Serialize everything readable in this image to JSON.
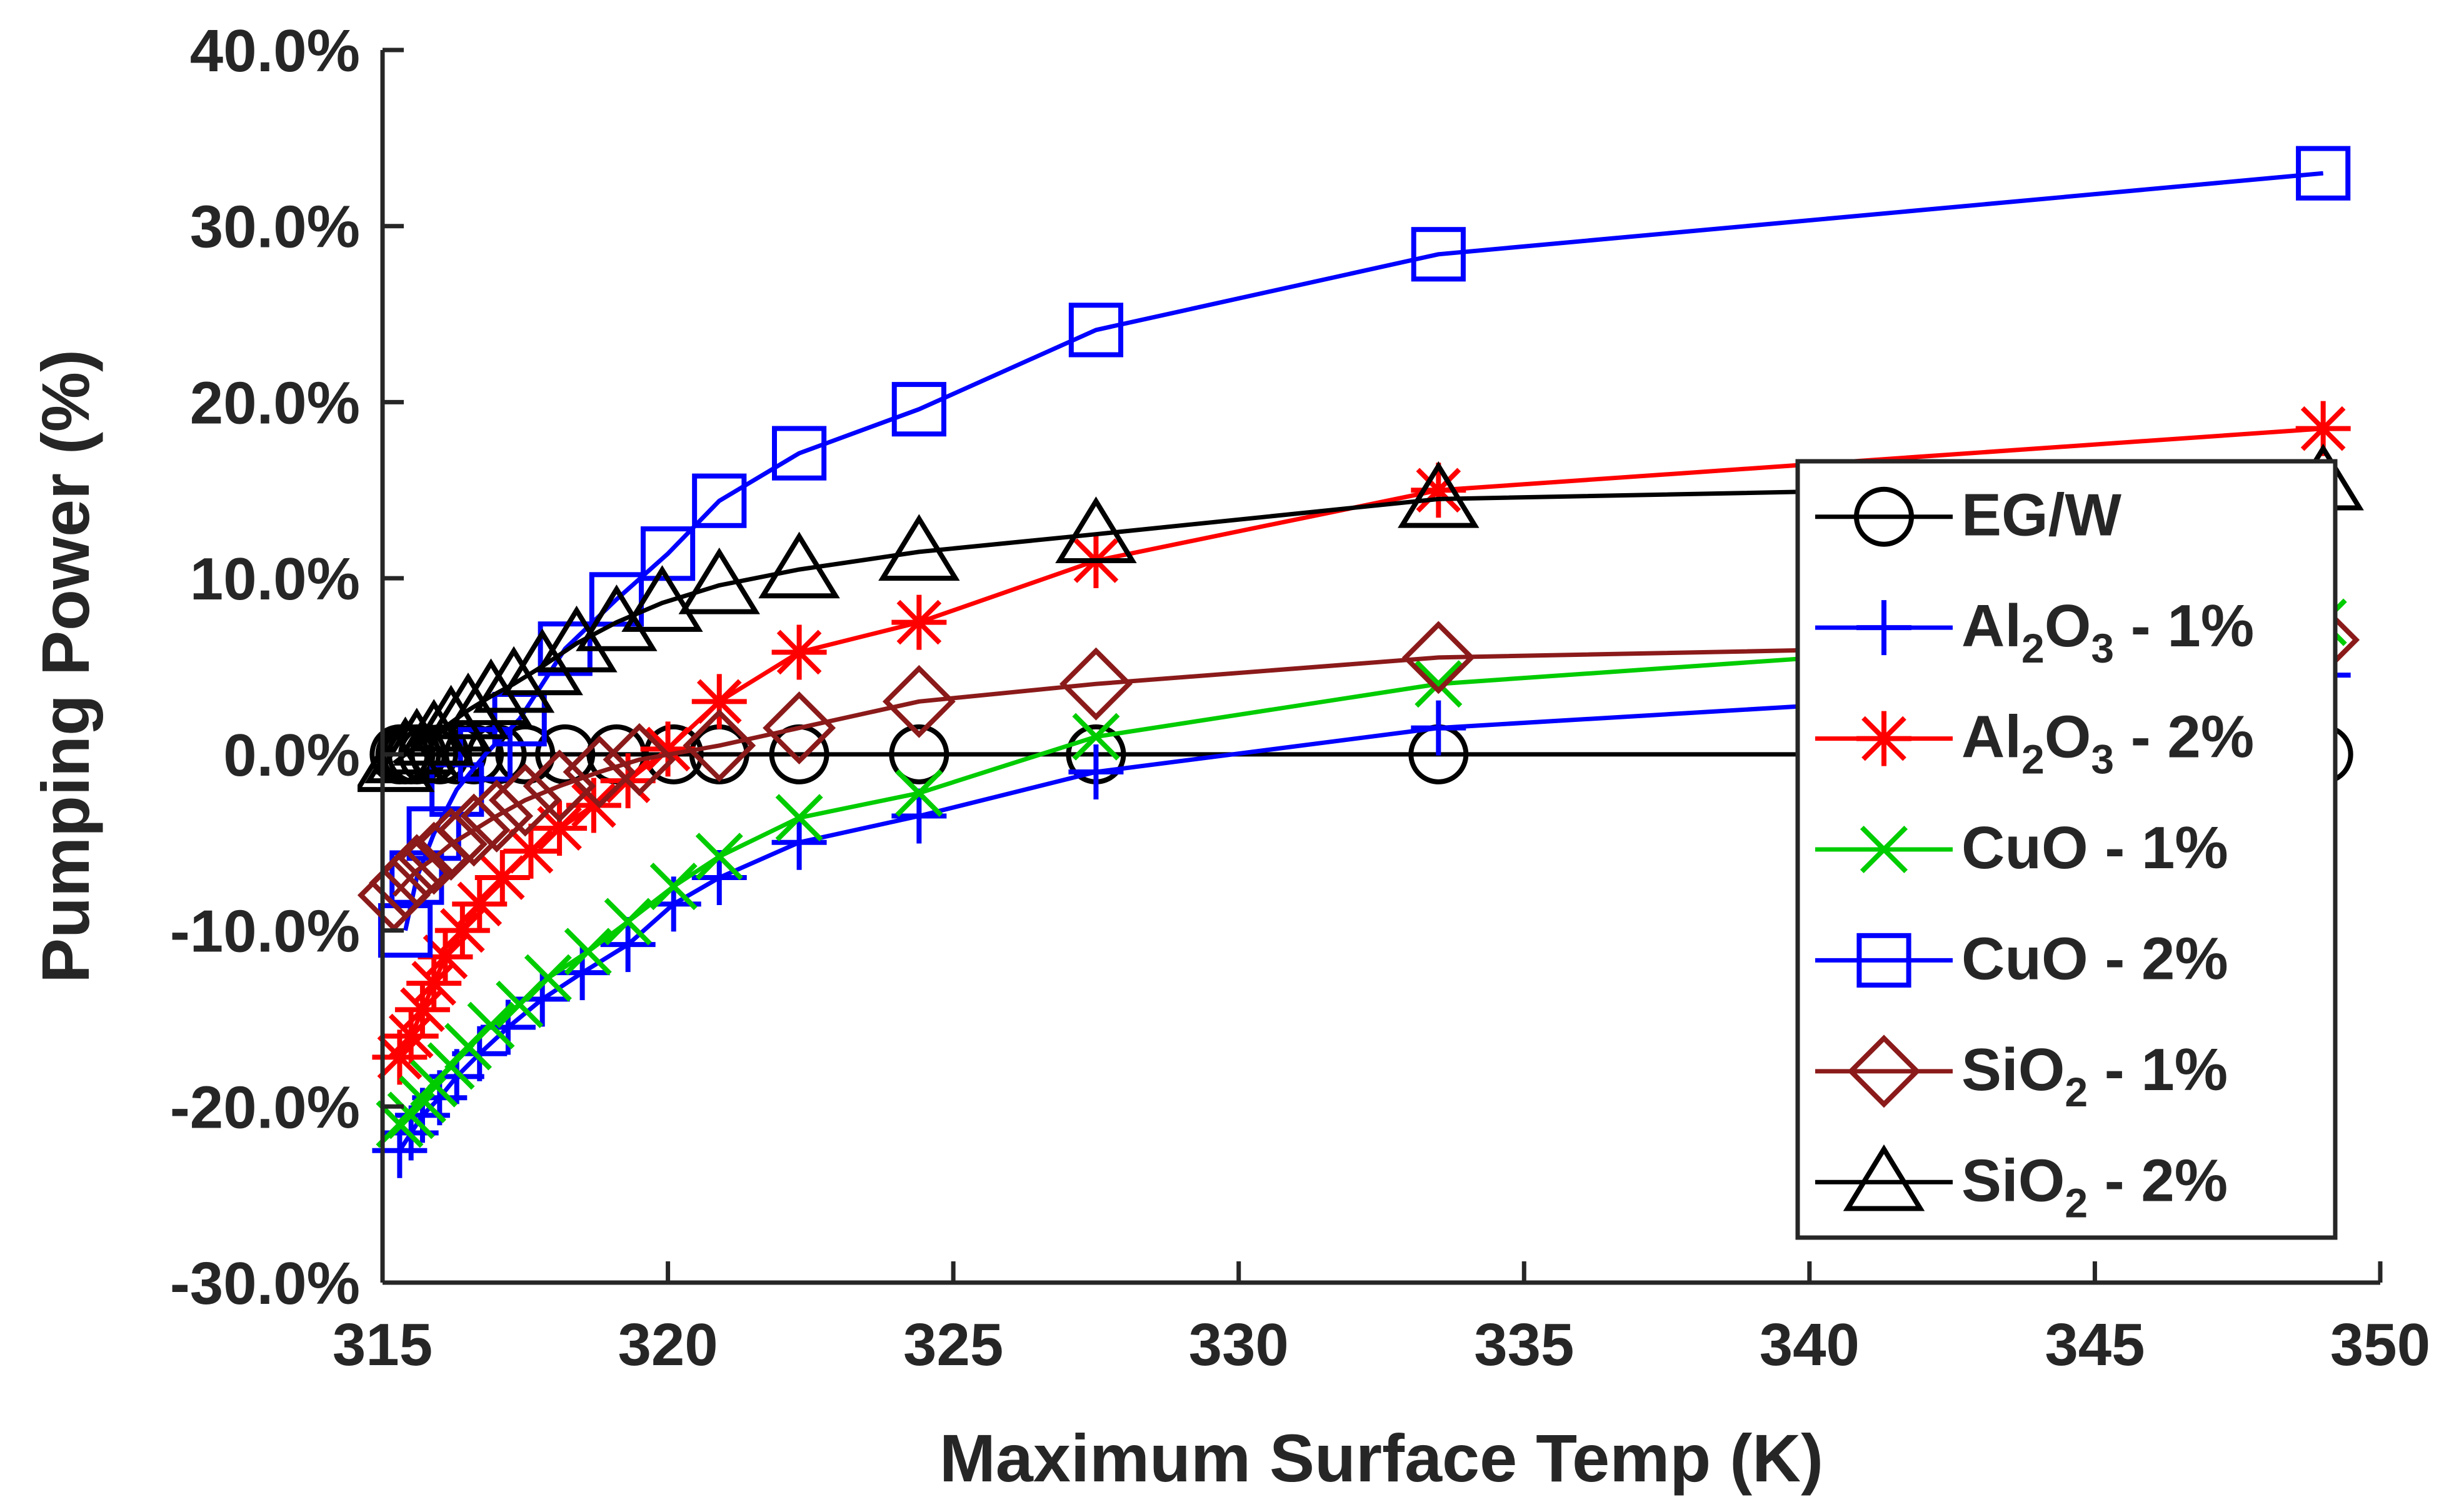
{
  "chart_data": {
    "type": "line",
    "title": "",
    "xlabel": "Maximum Surface Temp (K)",
    "ylabel": "Pumping Power (%)",
    "xlim": [
      315,
      350
    ],
    "ylim": [
      -30,
      40
    ],
    "x_ticks": [
      315,
      320,
      325,
      330,
      335,
      340,
      345,
      350
    ],
    "x_tick_labels": [
      "315",
      "320",
      "325",
      "330",
      "335",
      "340",
      "345",
      "350"
    ],
    "y_ticks": [
      -30,
      -20,
      -10,
      0,
      10,
      20,
      30,
      40
    ],
    "y_tick_labels": [
      "-30.0%",
      "-20.0%",
      "-10.0%",
      "0.0%",
      "10.0%",
      "20.0%",
      "30.0%",
      "40.0%"
    ],
    "grid": false,
    "legend_position": "right",
    "legend": [
      {
        "base": "EG/W",
        "sub": "",
        "rest": ""
      },
      {
        "base": "Al",
        "sub": "2",
        "base2": "O",
        "sub2": "3",
        "rest": " - 1%"
      },
      {
        "base": "Al",
        "sub": "2",
        "base2": "O",
        "sub2": "3",
        "rest": " - 2%"
      },
      {
        "base": "CuO - 1%",
        "sub": "",
        "rest": ""
      },
      {
        "base": "CuO - 2%",
        "sub": "",
        "rest": ""
      },
      {
        "base": "SiO",
        "sub": "2",
        "rest": " - 1%"
      },
      {
        "base": "SiO",
        "sub": "2",
        "rest": " - 2%"
      }
    ],
    "series": [
      {
        "name": "EG/W",
        "color": "#000000",
        "marker": "circle",
        "x": [
          315.3,
          315.4,
          315.5,
          315.6,
          315.8,
          316.0,
          316.3,
          316.6,
          317.0,
          317.5,
          318.2,
          319.1,
          320.1,
          320.9,
          322.3,
          324.4,
          327.5,
          333.5,
          349.0
        ],
        "y": [
          0,
          0,
          0,
          0,
          0,
          0,
          0,
          0,
          0,
          0,
          0,
          0,
          0,
          0,
          0,
          0,
          0,
          0,
          0
        ]
      },
      {
        "name": "Al2O3 - 1%",
        "color": "#0000FF",
        "marker": "plus",
        "x": [
          315.3,
          315.5,
          315.7,
          316.0,
          316.3,
          316.7,
          317.2,
          317.8,
          318.5,
          319.3,
          320.1,
          320.9,
          322.3,
          324.4,
          327.5,
          333.5,
          349.0
        ],
        "y": [
          -22.5,
          -21.5,
          -20.5,
          -19.5,
          -18.3,
          -17.0,
          -15.5,
          -13.9,
          -12.4,
          -10.8,
          -8.5,
          -7.0,
          -5.0,
          -3.5,
          -1.0,
          1.5,
          4.5
        ]
      },
      {
        "name": "Al2O3 - 2%",
        "color": "#FF0000",
        "marker": "asterisk",
        "x": [
          315.3,
          315.5,
          315.7,
          315.9,
          316.1,
          316.4,
          316.7,
          317.1,
          317.6,
          318.1,
          318.7,
          319.3,
          320.0,
          320.9,
          322.3,
          324.4,
          327.5,
          333.5,
          349.0
        ],
        "y": [
          -17.2,
          -16.0,
          -14.5,
          -13.0,
          -11.5,
          -10.0,
          -8.5,
          -7.0,
          -5.5,
          -4.2,
          -2.9,
          -1.5,
          0.3,
          3.0,
          5.8,
          7.5,
          11.0,
          15.0,
          18.5
        ]
      },
      {
        "name": "CuO - 1%",
        "color": "#00CC00",
        "marker": "x",
        "x": [
          315.3,
          315.5,
          315.7,
          315.9,
          316.2,
          316.5,
          316.9,
          317.4,
          317.9,
          318.6,
          319.3,
          320.1,
          320.9,
          322.3,
          324.4,
          327.5,
          333.5,
          349.0
        ],
        "y": [
          -21.0,
          -20.5,
          -19.6,
          -18.7,
          -17.7,
          -16.6,
          -15.4,
          -14.2,
          -12.7,
          -11.2,
          -9.5,
          -7.5,
          -5.8,
          -3.6,
          -2.2,
          1.0,
          4.0,
          7.5
        ]
      },
      {
        "name": "CuO - 2%",
        "color": "#0000FF",
        "marker": "square",
        "x": [
          315.4,
          315.6,
          315.9,
          316.3,
          316.8,
          317.4,
          318.2,
          319.1,
          320.0,
          320.9,
          322.3,
          324.4,
          327.5,
          333.5,
          349.0
        ],
        "y": [
          -10.0,
          -7.0,
          -4.5,
          -2.0,
          0.0,
          2.0,
          6.0,
          8.8,
          11.4,
          14.4,
          17.1,
          19.6,
          24.1,
          28.4,
          33.0
        ]
      },
      {
        "name": "SiO2 - 1%",
        "color": "#8B1A1A",
        "marker": "diamond",
        "x": [
          315.2,
          315.4,
          315.6,
          315.9,
          316.2,
          316.6,
          317.0,
          317.5,
          318.1,
          318.8,
          319.5,
          320.9,
          322.3,
          324.4,
          327.5,
          333.5,
          349.0
        ],
        "y": [
          -8.0,
          -7.3,
          -6.6,
          -5.9,
          -5.1,
          -4.3,
          -3.5,
          -2.6,
          -1.8,
          -1.0,
          -0.3,
          0.5,
          1.5,
          3.0,
          4.0,
          5.5,
          6.5
        ]
      },
      {
        "name": "SiO2 - 2%",
        "color": "#000000",
        "marker": "triangle",
        "x": [
          315.2,
          315.4,
          315.6,
          315.9,
          316.2,
          316.5,
          316.9,
          317.3,
          317.8,
          318.4,
          319.1,
          319.9,
          320.9,
          322.3,
          324.4,
          327.5,
          333.5,
          349.0
        ],
        "y": [
          -0.5,
          0.0,
          0.5,
          1.0,
          1.8,
          2.5,
          3.3,
          4.0,
          5.0,
          6.3,
          7.5,
          8.6,
          9.6,
          10.5,
          11.5,
          12.5,
          14.5,
          15.5
        ]
      }
    ]
  }
}
